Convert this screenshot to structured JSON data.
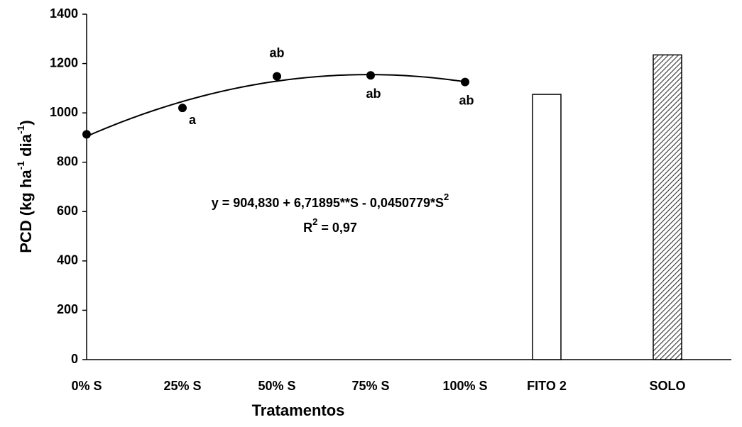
{
  "chart_data": {
    "type": "combo",
    "x_label": "Tratamentos",
    "y_label": [
      "PCD (kg ha",
      "-1",
      " dia",
      "-1",
      ")"
    ],
    "categories": [
      "0% S",
      "25% S",
      "50% S",
      "75% S",
      "100% S",
      "FITO 2",
      "SOLO"
    ],
    "series": [
      {
        "type": "scatter",
        "color": "#000000",
        "values": [
          913,
          1020,
          1148,
          1152,
          1125,
          null,
          null
        ],
        "annotations": [
          null,
          "a",
          "ab",
          "ab",
          "ab",
          null,
          null
        ]
      },
      {
        "type": "bar",
        "colors": [
          "#ffffff",
          "#555555"
        ],
        "patterns": [
          "none",
          "diagonal"
        ],
        "values": [
          null,
          null,
          null,
          null,
          null,
          1075,
          1235
        ]
      }
    ],
    "fit": {
      "coefficients": [
        904.83,
        6.71895,
        -0.0450779
      ],
      "xlim": [
        0,
        100
      ],
      "equation": [
        "y = 904,830 + 6,71895**S - 0,0450779*S",
        "2"
      ],
      "r2": [
        "R",
        "2",
        " = 0,97"
      ]
    },
    "ylim": [
      0,
      1400
    ],
    "yticks": [
      0,
      200,
      400,
      600,
      800,
      1000,
      1200,
      1400
    ]
  }
}
